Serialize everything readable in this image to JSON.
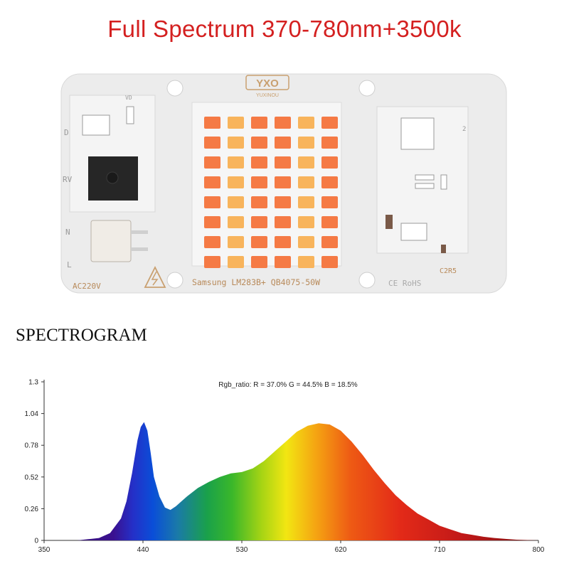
{
  "title": "Full Spectrum 370-780nm+3500k",
  "board": {
    "brand_logo": "YXO",
    "brand_sub": "YUXINOU",
    "model_text": "Samsung LM283B+ QB4075-50W",
    "voltage_text": "AC220V",
    "cert_text": "CE RoHS",
    "label_d": "D",
    "label_rv": "RV",
    "label_n": "N",
    "label_l": "L",
    "label_c2r5": "C2R5",
    "label_2": "2",
    "label_vd": "VD",
    "led_warm_color": "#f57a45",
    "led_amber_color": "#f8b45c",
    "pcb_color": "#ececec"
  },
  "spectrogram": {
    "heading": "SPECTROGRAM",
    "annotation": "Rgb_ratio: R = 37.0% G = 44.5% B = 18.5%"
  },
  "chart_data": {
    "type": "area",
    "xlim": [
      350,
      800
    ],
    "ylim": [
      0,
      1.3
    ],
    "x_ticks": [
      "350",
      "440",
      "530",
      "620",
      "710",
      "800"
    ],
    "y_ticks": [
      "0",
      "0.26",
      "0.52",
      "0.78",
      "1.04",
      "1.3"
    ],
    "annotation": "Rgb_ratio: R = 37.0% G = 44.5% B = 18.5%",
    "series": [
      {
        "x": [
          370,
          380,
          390,
          400,
          410,
          420,
          425,
          430,
          435,
          438,
          441,
          444,
          447,
          450,
          455,
          460,
          465,
          470,
          480,
          490,
          500,
          510,
          520,
          530,
          540,
          550,
          560,
          570,
          580,
          590,
          600,
          610,
          620,
          630,
          640,
          650,
          660,
          670,
          680,
          690,
          700,
          710,
          720,
          730,
          740,
          750,
          760,
          770,
          780,
          790,
          800
        ],
        "y": [
          0.0,
          0.0,
          0.01,
          0.02,
          0.06,
          0.18,
          0.32,
          0.55,
          0.82,
          0.93,
          0.97,
          0.9,
          0.72,
          0.52,
          0.36,
          0.27,
          0.25,
          0.28,
          0.36,
          0.43,
          0.48,
          0.52,
          0.55,
          0.56,
          0.59,
          0.65,
          0.73,
          0.81,
          0.89,
          0.94,
          0.96,
          0.95,
          0.9,
          0.81,
          0.7,
          0.58,
          0.47,
          0.37,
          0.29,
          0.22,
          0.17,
          0.12,
          0.09,
          0.06,
          0.045,
          0.03,
          0.02,
          0.012,
          0.006,
          0.003,
          0.0
        ]
      }
    ]
  }
}
